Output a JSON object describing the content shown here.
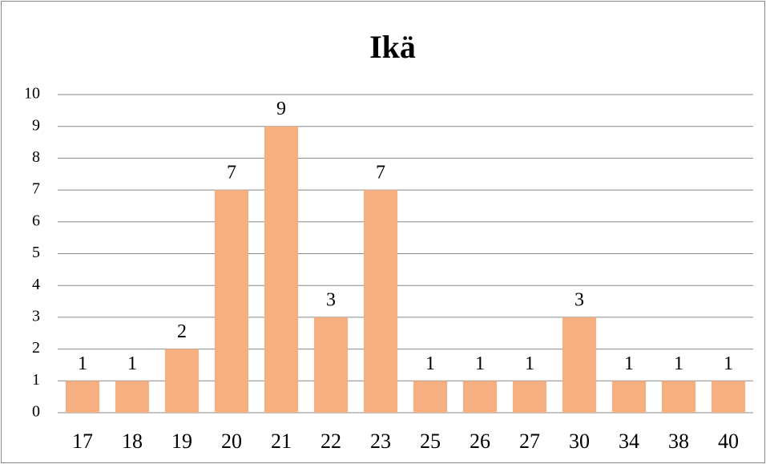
{
  "chart_data": {
    "type": "bar",
    "title": "Ikä",
    "categories": [
      "17",
      "18",
      "19",
      "20",
      "21",
      "22",
      "23",
      "25",
      "26",
      "27",
      "30",
      "34",
      "38",
      "40"
    ],
    "values": [
      1,
      1,
      2,
      7,
      9,
      3,
      7,
      1,
      1,
      1,
      3,
      1,
      1,
      1
    ],
    "color": "#f5af80",
    "ylim": [
      0,
      10
    ],
    "yticks": [
      0,
      1,
      2,
      3,
      4,
      5,
      6,
      7,
      8,
      9,
      10
    ],
    "grid": true
  }
}
